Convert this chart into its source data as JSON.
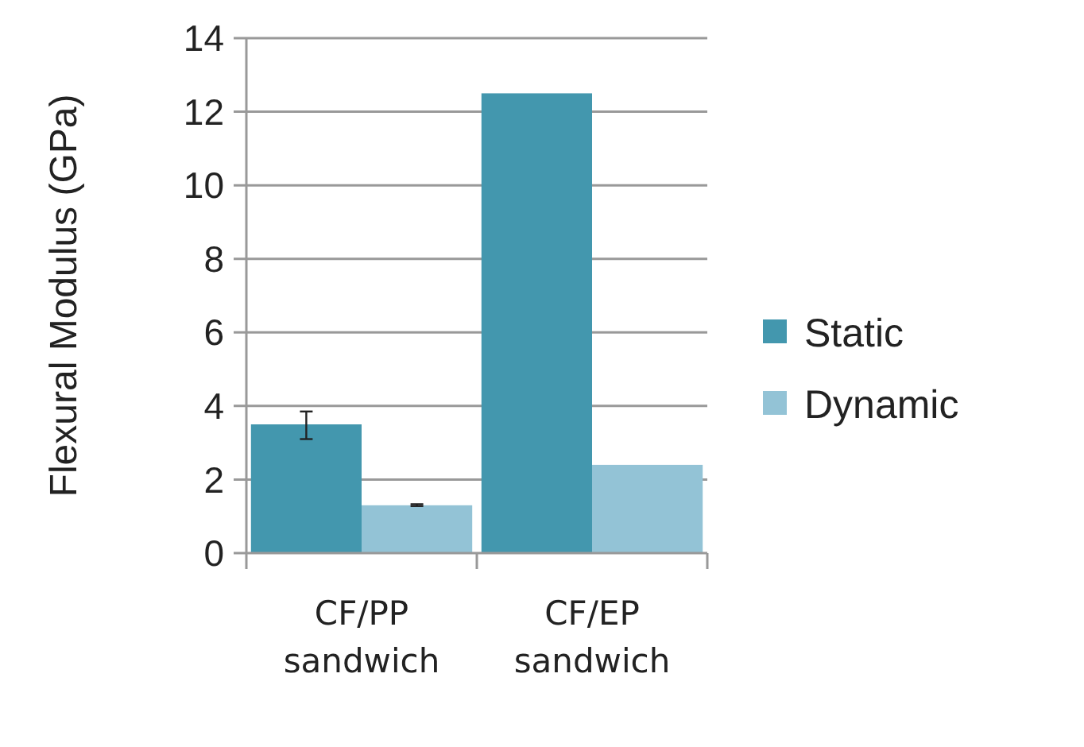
{
  "chart_data": {
    "type": "bar",
    "ylabel": "Flexural Modulus (GPa)",
    "categories": [
      "CF/PP sandwich",
      "CF/EP sandwich"
    ],
    "series": [
      {
        "name": "Static",
        "color": "#4397ae",
        "values": [
          3.5,
          12.5
        ],
        "errors": [
          [
            3.1,
            3.85
          ],
          null
        ]
      },
      {
        "name": "Dynamic",
        "color": "#93c3d6",
        "values": [
          1.3,
          2.4
        ],
        "errors": [
          [
            1.28,
            1.33
          ],
          null
        ]
      }
    ],
    "ylim": [
      0,
      14
    ],
    "yticks": [
      0,
      2,
      4,
      6,
      8,
      10,
      12,
      14
    ],
    "grid": "y",
    "legend": "right"
  }
}
